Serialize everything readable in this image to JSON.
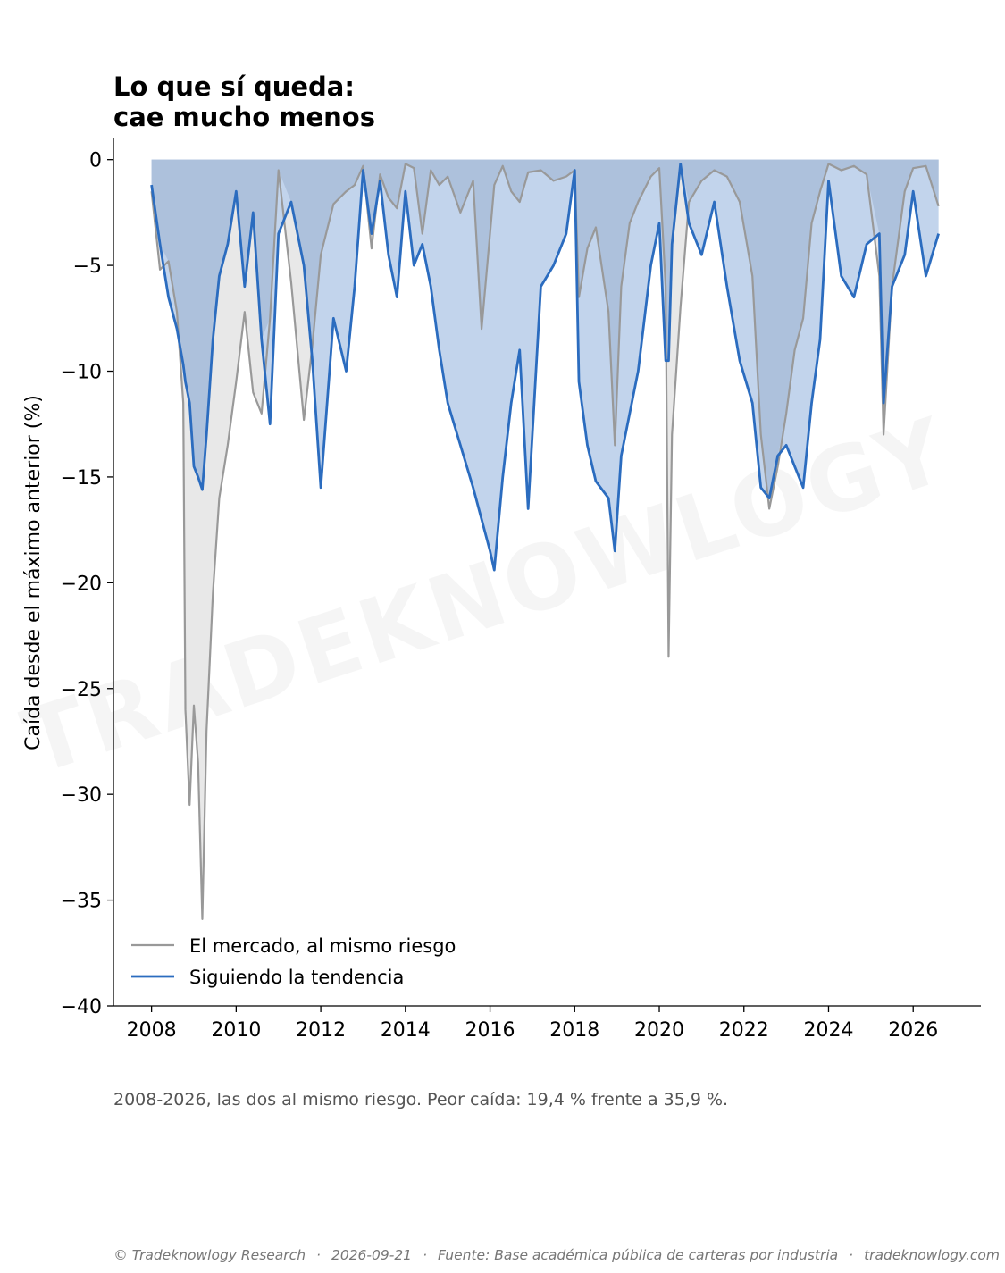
{
  "title_line1": "Lo que sí queda:",
  "title_line2": "cae mucho menos",
  "subtitle": "2008-2026, las dos al mismo riesgo. Peor caída: 19,4 % frente a 35,9 %.",
  "watermark": "TRADEKNOWLOGY",
  "footer": {
    "copyright": "© Tradeknowlogy Research",
    "date": "2026-09-21",
    "source": "Fuente: Base académica pública de carteras por industria",
    "site": "tradeknowlogy.com",
    "separator": "·"
  },
  "colors": {
    "market": "#999999",
    "market_fill": "#e8e8e8",
    "trend": "#2b6cbf",
    "trend_fill": "#c2d4ec",
    "overlap_fill": "#adc1dc"
  },
  "chart_data": {
    "type": "line",
    "xlabel": "",
    "ylabel": "Caída desde el máximo anterior (%)",
    "xlim": [
      2007.1,
      2027.6
    ],
    "ylim": [
      -40,
      1
    ],
    "x_ticks": [
      2008,
      2010,
      2012,
      2014,
      2016,
      2018,
      2020,
      2022,
      2024,
      2026
    ],
    "y_ticks": [
      0,
      -5,
      -10,
      -15,
      -20,
      -25,
      -30,
      -35,
      -40
    ],
    "y_tick_labels": [
      "0",
      "−5",
      "−10",
      "−15",
      "−20",
      "−25",
      "−30",
      "−35",
      "−40"
    ],
    "grid": false,
    "legend_position": "bottom-left",
    "worst_drawdown": {
      "trend": -19.4,
      "market": -35.9
    },
    "x": [
      2008.0,
      2008.2,
      2008.4,
      2008.6,
      2008.75,
      2008.8,
      2008.9,
      2009.0,
      2009.1,
      2009.2,
      2009.3,
      2009.45,
      2009.6,
      2009.8,
      2010.0,
      2010.2,
      2010.4,
      2010.6,
      2010.8,
      2011.0,
      2011.3,
      2011.6,
      2011.8,
      2012.0,
      2012.3,
      2012.6,
      2012.8,
      2013.0,
      2013.2,
      2013.4,
      2013.6,
      2013.8,
      2014.0,
      2014.2,
      2014.4,
      2014.6,
      2014.8,
      2015.0,
      2015.3,
      2015.6,
      2015.8,
      2016.0,
      2016.1,
      2016.3,
      2016.5,
      2016.7,
      2016.9,
      2017.2,
      2017.5,
      2017.8,
      2018.0,
      2018.1,
      2018.3,
      2018.5,
      2018.8,
      2018.95,
      2019.1,
      2019.3,
      2019.5,
      2019.8,
      2020.0,
      2020.15,
      2020.22,
      2020.3,
      2020.5,
      2020.7,
      2021.0,
      2021.3,
      2021.6,
      2021.9,
      2022.2,
      2022.4,
      2022.6,
      2022.8,
      2023.0,
      2023.2,
      2023.4,
      2023.6,
      2023.8,
      2024.0,
      2024.3,
      2024.6,
      2024.9,
      2025.2,
      2025.3,
      2025.5,
      2025.8,
      2026.0,
      2026.3,
      2026.6
    ],
    "series": [
      {
        "name": "El mercado, al mismo riesgo",
        "values": [
          -1.5,
          -5.2,
          -4.8,
          -7.2,
          -11.5,
          -26.0,
          -30.5,
          -25.8,
          -28.5,
          -35.9,
          -27.0,
          -20.5,
          -16.0,
          -13.5,
          -10.5,
          -7.2,
          -11.0,
          -12.0,
          -7.5,
          -0.5,
          -5.8,
          -12.3,
          -8.8,
          -4.5,
          -2.1,
          -1.5,
          -1.2,
          -0.3,
          -4.2,
          -0.7,
          -1.8,
          -2.3,
          -0.2,
          -0.4,
          -3.5,
          -0.5,
          -1.2,
          -0.8,
          -2.5,
          -1.0,
          -8.0,
          -3.5,
          -1.2,
          -0.3,
          -1.5,
          -2.0,
          -0.6,
          -0.5,
          -1.0,
          -0.8,
          -0.5,
          -6.5,
          -4.2,
          -3.2,
          -7.2,
          -13.5,
          -6.0,
          -3.0,
          -2.0,
          -0.8,
          -0.4,
          -6.0,
          -23.5,
          -13.0,
          -7.0,
          -2.0,
          -1.0,
          -0.5,
          -0.8,
          -2.0,
          -5.5,
          -13.0,
          -16.5,
          -14.5,
          -12.0,
          -9.0,
          -7.5,
          -3.0,
          -1.5,
          -0.2,
          -0.5,
          -0.3,
          -0.7,
          -5.5,
          -13.0,
          -6.0,
          -1.5,
          -0.4,
          -0.3,
          -2.2
        ]
      },
      {
        "name": "Siguiendo la tendencia",
        "values": [
          -1.2,
          -4.0,
          -6.5,
          -8.0,
          -9.7,
          -10.5,
          -11.5,
          -14.5,
          -15.0,
          -15.6,
          -13.0,
          -8.5,
          -5.5,
          -4.0,
          -1.5,
          -6.0,
          -2.5,
          -8.5,
          -12.5,
          -3.5,
          -2.0,
          -5.0,
          -9.5,
          -15.5,
          -7.5,
          -10.0,
          -6.0,
          -0.5,
          -3.5,
          -1.0,
          -4.5,
          -6.5,
          -1.5,
          -5.0,
          -4.0,
          -6.0,
          -9.0,
          -11.5,
          -13.5,
          -15.5,
          -17.0,
          -18.5,
          -19.4,
          -15.0,
          -11.5,
          -9.0,
          -16.5,
          -6.0,
          -5.0,
          -3.5,
          -0.5,
          -10.5,
          -13.5,
          -15.2,
          -16.0,
          -18.5,
          -14.0,
          -12.0,
          -10.0,
          -5.0,
          -3.0,
          -9.5,
          -9.5,
          -4.0,
          -0.2,
          -3.0,
          -4.5,
          -2.0,
          -6.0,
          -9.5,
          -11.5,
          -15.5,
          -16.0,
          -14.0,
          -13.5,
          -14.5,
          -15.5,
          -11.5,
          -8.5,
          -1.0,
          -5.5,
          -6.5,
          -4.0,
          -3.5,
          -11.5,
          -6.0,
          -4.5,
          -1.5,
          -5.5,
          -3.5
        ]
      }
    ]
  }
}
